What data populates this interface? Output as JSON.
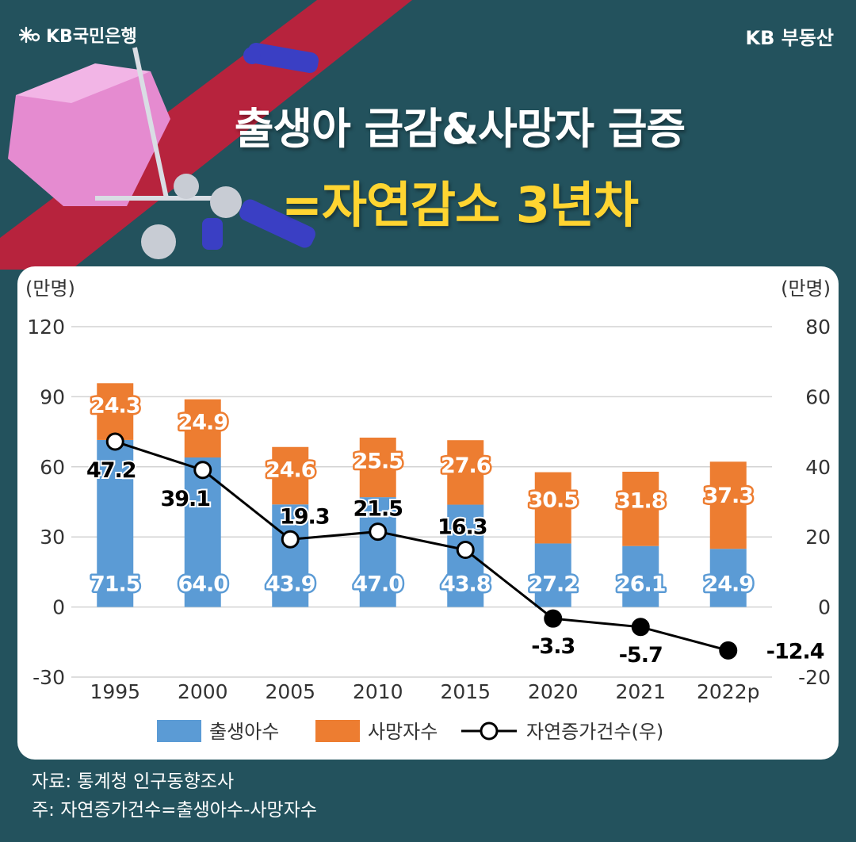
{
  "header": {
    "brand_left": "KB국민은행",
    "brand_right": "KB 부동산",
    "title_line1": "출생아 급감&사망자 급증",
    "title_line2": "=자연감소 3년차"
  },
  "chart_data": {
    "type": "bar",
    "stacked": true,
    "categories": [
      "1995",
      "2000",
      "2005",
      "2010",
      "2015",
      "2020",
      "2021",
      "2022p"
    ],
    "series": [
      {
        "name": "출생아수",
        "axis": "left",
        "color": "#5b9bd5",
        "values": [
          71.5,
          64.0,
          43.9,
          47.0,
          43.8,
          27.2,
          26.1,
          24.9
        ],
        "labels": [
          "71.5",
          "64.0",
          "43.9",
          "47.0",
          "43.8",
          "27.2",
          "26.1",
          "24.9"
        ]
      },
      {
        "name": "사망자수",
        "axis": "left",
        "color": "#ed7d31",
        "values": [
          24.3,
          24.9,
          24.6,
          25.5,
          27.6,
          30.5,
          31.8,
          37.3
        ],
        "labels": [
          "24.3",
          "24.9",
          "24.6",
          "25.5",
          "27.6",
          "30.5",
          "31.8",
          "37.3"
        ]
      },
      {
        "name": "자연증가건수(우)",
        "type": "line",
        "axis": "right",
        "color": "#000000",
        "values": [
          47.2,
          39.1,
          19.3,
          21.5,
          16.3,
          -3.3,
          -5.7,
          -12.4
        ],
        "labels": [
          "47.2",
          "39.1",
          "19.3",
          "21.5",
          "16.3",
          "-3.3",
          "-5.7",
          "-12.4"
        ]
      }
    ],
    "y_left": {
      "label": "(만명)",
      "ticks": [
        "120",
        "90",
        "60",
        "30",
        "0",
        "-30"
      ],
      "lim": [
        -30,
        120
      ]
    },
    "y_right": {
      "label": "(만명)",
      "ticks": [
        "80",
        "60",
        "40",
        "20",
        "0",
        "-20"
      ],
      "lim": [
        -20,
        80
      ]
    },
    "grid": true,
    "legend_position": "bottom"
  },
  "footer": {
    "source": "자료: 통계청 인구동향조사",
    "note": "주: 자연증가건수=출생아수-사망자수"
  },
  "colors": {
    "background": "#23525d",
    "title_highlight": "#ffd531",
    "ribbon": "#c41f3b"
  },
  "icons": [
    "kb-star-logo-icon",
    "baby-stroller-illustration",
    "person-figure-icon"
  ]
}
